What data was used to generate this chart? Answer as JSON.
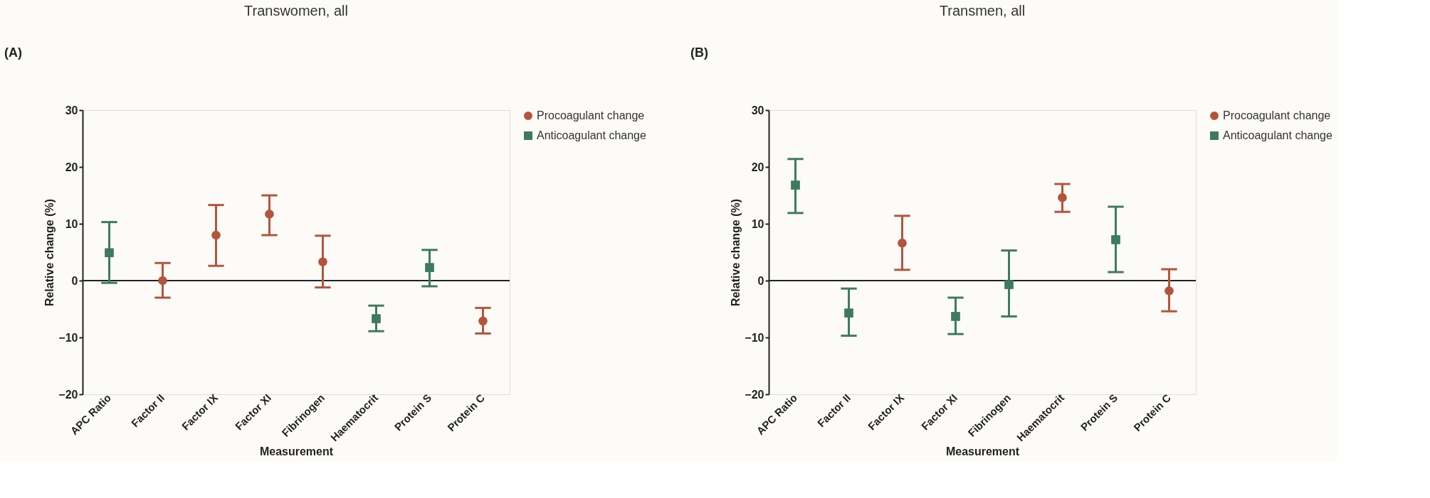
{
  "chart_data": [
    {
      "type": "scatter",
      "title": "Transwomen, all",
      "xlabel": "Measurement",
      "ylabel": "Relative change (%)",
      "annotations": [
        "(A)"
      ],
      "categories": [
        "APC Ratio",
        "Factor II",
        "Factor IX",
        "Factor XI",
        "Fibrinogen",
        "Haematocrit",
        "Protein S",
        "Protein C"
      ],
      "ylim": [
        -20,
        30
      ],
      "yticks": [
        -20,
        -10,
        0,
        10,
        20,
        30
      ],
      "grid": false,
      "legend": "top right",
      "ref_lines": [
        {
          "axis": "y",
          "value": 0,
          "color": "#222222"
        }
      ],
      "series": [
        {
          "name": "Procoagulant change",
          "color": "#b5543c",
          "marker": "circle",
          "values": [
            null,
            0,
            8.0,
            11.7,
            3.3,
            null,
            null,
            -7.1
          ],
          "errors": [
            null,
            [
              -3.0,
              3.1
            ],
            [
              2.6,
              13.3
            ],
            [
              8.0,
              15.0
            ],
            [
              -1.2,
              7.9
            ],
            null,
            null,
            [
              -9.3,
              -4.8
            ]
          ]
        },
        {
          "name": "Anticoagulant change",
          "color": "#3e7b5e",
          "marker": "square",
          "values": [
            4.9,
            null,
            null,
            null,
            null,
            -6.7,
            2.3,
            null
          ],
          "errors": [
            [
              -0.4,
              10.3
            ],
            null,
            null,
            null,
            null,
            [
              -8.9,
              -4.4
            ],
            [
              -1.0,
              5.4
            ],
            null
          ]
        }
      ]
    },
    {
      "type": "scatter",
      "title": "Transmen, all",
      "xlabel": "Measurement",
      "ylabel": "Relative change (%)",
      "annotations": [
        "(B)"
      ],
      "categories": [
        "APC Ratio",
        "Factor II",
        "Factor IX",
        "Factor XI",
        "Fibrinogen",
        "Haematocrit",
        "Protein S",
        "Protein C"
      ],
      "ylim": [
        -20,
        30
      ],
      "yticks": [
        -20,
        -10,
        0,
        10,
        20,
        30
      ],
      "grid": false,
      "legend": "top right",
      "ref_lines": [
        {
          "axis": "y",
          "value": 0,
          "color": "#222222"
        }
      ],
      "series": [
        {
          "name": "Procoagulant change",
          "color": "#b5543c",
          "marker": "circle",
          "values": [
            null,
            null,
            6.6,
            null,
            null,
            14.6,
            null,
            -1.8
          ],
          "errors": [
            null,
            null,
            [
              1.9,
              11.4
            ],
            null,
            null,
            [
              12.1,
              17.0
            ],
            null,
            [
              -5.4,
              2.0
            ]
          ]
        },
        {
          "name": "Anticoagulant change",
          "color": "#3e7b5e",
          "marker": "square",
          "values": [
            16.8,
            -5.7,
            null,
            -6.3,
            -0.7,
            null,
            7.2,
            null
          ],
          "errors": [
            [
              11.9,
              21.4
            ],
            [
              -9.7,
              -1.4
            ],
            null,
            [
              -9.4,
              -3.0
            ],
            [
              -6.3,
              5.3
            ],
            null,
            [
              1.5,
              13.0
            ],
            null
          ]
        }
      ]
    }
  ]
}
